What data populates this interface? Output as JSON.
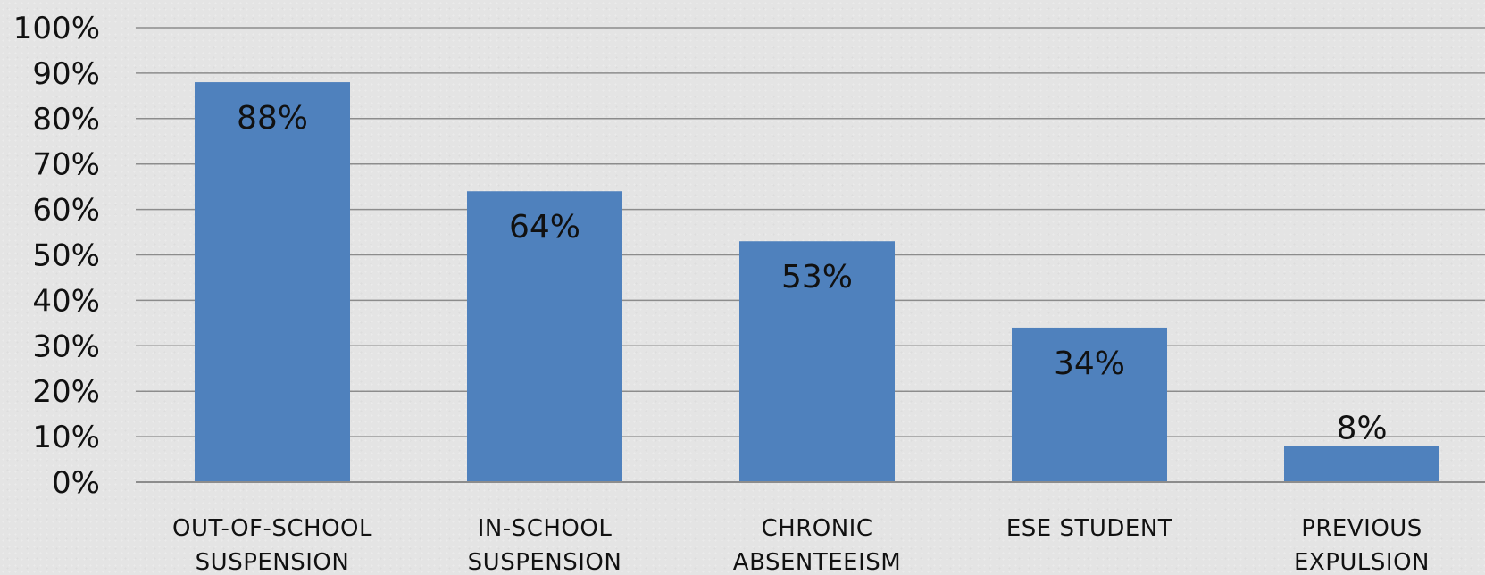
{
  "chart_data": {
    "type": "bar",
    "categories": [
      [
        "OUT-OF-SCHOOL",
        "SUSPENSION"
      ],
      [
        "IN-SCHOOL",
        "SUSPENSION"
      ],
      [
        "CHRONIC",
        "ABSENTEEISM"
      ],
      [
        "ESE STUDENT"
      ],
      [
        "PREVIOUS",
        "EXPULSION"
      ]
    ],
    "values": [
      88,
      64,
      53,
      34,
      8
    ],
    "data_labels": [
      "88%",
      "64%",
      "53%",
      "34%",
      "8%"
    ],
    "yticks": [
      "0%",
      "10%",
      "20%",
      "30%",
      "40%",
      "50%",
      "60%",
      "70%",
      "80%",
      "90%",
      "100%"
    ],
    "ylim": [
      0,
      100
    ],
    "grid": true,
    "bar_color": "#4f81bd",
    "gridline_color": "#8c8c8c"
  }
}
